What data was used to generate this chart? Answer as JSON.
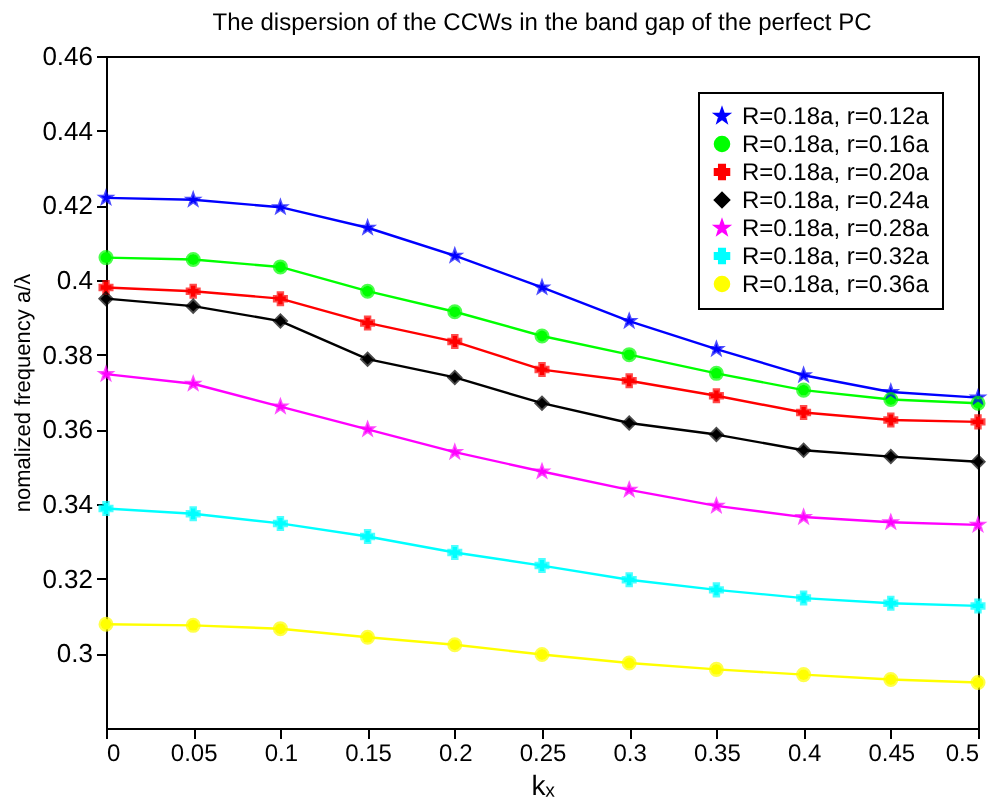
{
  "chart_data": {
    "type": "line",
    "title": "The dispersion of the CCWs in the band gap of the perfect PC",
    "xlabel": "kₓ",
    "ylabel": "nomalized frequency a/λ",
    "x": [
      0,
      0.05,
      0.1,
      0.15,
      0.2,
      0.25,
      0.3,
      0.35,
      0.4,
      0.45,
      0.5
    ],
    "series": [
      {
        "name": "R=0.18a, r=0.12a",
        "color": "#0000ff",
        "marker": "star",
        "values": [
          0.422,
          0.4215,
          0.4195,
          0.414,
          0.4065,
          0.398,
          0.389,
          0.3815,
          0.3745,
          0.37,
          0.3685
        ]
      },
      {
        "name": "R=0.18a, r=0.16a",
        "color": "#00ff00",
        "marker": "circle",
        "values": [
          0.406,
          0.4055,
          0.4035,
          0.397,
          0.3915,
          0.385,
          0.38,
          0.375,
          0.3705,
          0.368,
          0.367
        ]
      },
      {
        "name": "R=0.18a, r=0.20a",
        "color": "#ff0000",
        "marker": "cross",
        "values": [
          0.398,
          0.397,
          0.395,
          0.3885,
          0.3835,
          0.376,
          0.373,
          0.369,
          0.3645,
          0.3625,
          0.362
        ]
      },
      {
        "name": "R=0.18a, r=0.24a",
        "color": "#000000",
        "marker": "diamond",
        "values": [
          0.395,
          0.393,
          0.389,
          0.3788,
          0.3739,
          0.367,
          0.3617,
          0.3586,
          0.3544,
          0.3527,
          0.3513
        ]
      },
      {
        "name": "R=0.18a, r=0.28a",
        "color": "#ff00ff",
        "marker": "star",
        "values": [
          0.3748,
          0.3722,
          0.3661,
          0.36,
          0.3539,
          0.3487,
          0.3438,
          0.3395,
          0.3365,
          0.3351,
          0.3344
        ]
      },
      {
        "name": "R=0.18a, r=0.32a",
        "color": "#00ffff",
        "marker": "cross",
        "values": [
          0.3388,
          0.3374,
          0.3348,
          0.3313,
          0.327,
          0.3235,
          0.3197,
          0.317,
          0.3148,
          0.3134,
          0.3127
        ]
      },
      {
        "name": "R=0.18a, r=0.36a",
        "color": "#ffff00",
        "marker": "circle",
        "values": [
          0.3078,
          0.3075,
          0.3066,
          0.3043,
          0.3023,
          0.2997,
          0.2974,
          0.2957,
          0.2943,
          0.293,
          0.2922
        ]
      }
    ],
    "xlim": [
      0,
      0.5
    ],
    "xticks": [
      0,
      0.05,
      0.1,
      0.15,
      0.2,
      0.25,
      0.3,
      0.35,
      0.4,
      0.45,
      0.5
    ],
    "ylim": [
      0.28,
      0.46
    ],
    "yticks": [
      0.3,
      0.32,
      0.34,
      0.36,
      0.38,
      0.4,
      0.42,
      0.44,
      0.46
    ],
    "grid": false,
    "legend": "top right",
    "line_style": "solid"
  }
}
